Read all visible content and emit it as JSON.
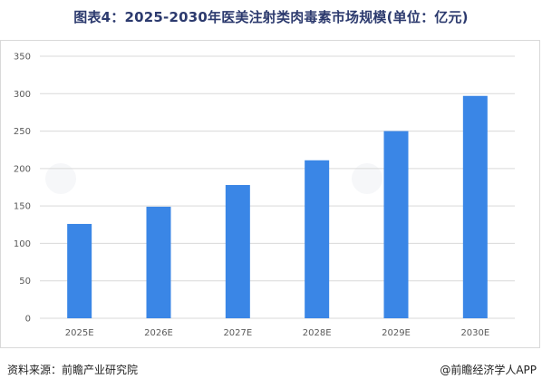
{
  "title": "图表4：2025-2030年医美注射类肉毒素市场规模(单位：亿元)",
  "footer": {
    "source": "资料来源：前瞻产业研究院",
    "brand": "@前瞻经济学人APP"
  },
  "chart_data": {
    "type": "bar",
    "categories": [
      "2025E",
      "2026E",
      "2027E",
      "2028E",
      "2029E",
      "2030E"
    ],
    "values": [
      126,
      149,
      178,
      211,
      250,
      297
    ],
    "ylim": [
      0,
      350
    ],
    "yticks": [
      0,
      50,
      100,
      150,
      200,
      250,
      300,
      350
    ],
    "grid": true,
    "bar_color": "#3a86e6",
    "grid_color": "#d9d9d9"
  }
}
